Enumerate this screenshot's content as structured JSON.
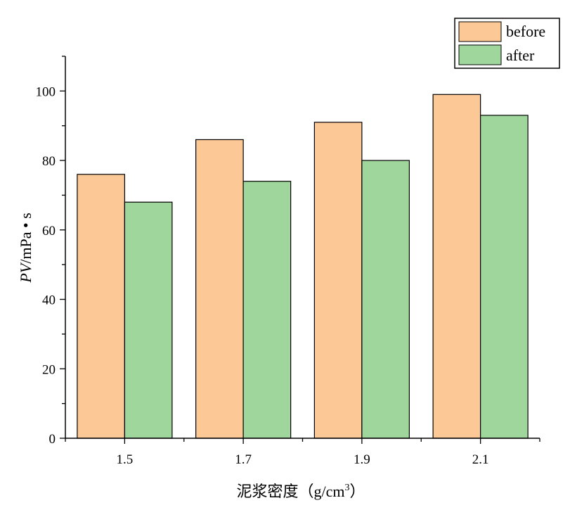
{
  "chart_data": {
    "type": "bar",
    "categories": [
      "1.5",
      "1.7",
      "1.9",
      "2.1"
    ],
    "series": [
      {
        "name": "before",
        "values": [
          76,
          86,
          91,
          99
        ],
        "color": "#FCC896"
      },
      {
        "name": "after",
        "values": [
          68,
          74,
          80,
          93
        ],
        "color": "#9FD69B"
      }
    ],
    "xlabel_main": "泥浆密度（g/cm",
    "xlabel_sup": "3",
    "xlabel_close": "）",
    "ylabel_var": "PV",
    "ylabel_unit": "/mPa • s",
    "ylim": [
      0,
      110
    ],
    "yticks": [
      0,
      20,
      40,
      60,
      80,
      100
    ],
    "legend_position": "top-right",
    "grid": false
  }
}
